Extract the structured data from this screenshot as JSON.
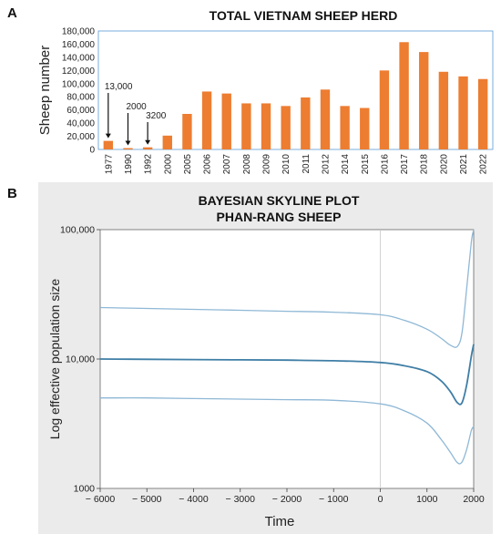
{
  "panels": {
    "a": "A",
    "b": "B"
  },
  "chart_data": [
    {
      "type": "bar",
      "title": "TOTAL VIETNAM SHEEP HERD",
      "ylabel": "Sheep number",
      "xlabel": "",
      "ylim": [
        0,
        180000
      ],
      "yticks": [
        "0",
        "20,000",
        "40,000",
        "60,000",
        "80,000",
        "100,000",
        "120,000",
        "140,000",
        "160,000",
        "180,000"
      ],
      "categories": [
        "1977",
        "1990",
        "1992",
        "2000",
        "2005",
        "2006",
        "2007",
        "2008",
        "2009",
        "2010",
        "2011",
        "2012",
        "2014",
        "2015",
        "2016",
        "2017",
        "2018",
        "2020",
        "2021",
        "2022"
      ],
      "values": [
        13000,
        2000,
        3200,
        21000,
        54000,
        88000,
        85000,
        70000,
        70000,
        66000,
        79000,
        91000,
        66000,
        63000,
        120000,
        163000,
        148000,
        118000,
        111000,
        107000
      ],
      "bar_color": "#ed7d31",
      "annotations": [
        {
          "text": "13,000",
          "category": "1977"
        },
        {
          "text": "2000",
          "category": "1990"
        },
        {
          "text": "3200",
          "category": "1992"
        }
      ]
    },
    {
      "type": "line",
      "title": "BAYESIAN SKYLINE PLOT",
      "subtitle": "PHAN-RANG SHEEP",
      "xlabel": "Time",
      "ylabel": "Log effective population size",
      "y_scale": "log",
      "xlim": [
        -6000,
        2000
      ],
      "ylim": [
        1000,
        100000
      ],
      "xticks": [
        "− 6000",
        "− 5000",
        "− 4000",
        "− 3000",
        "− 2000",
        "− 1000",
        "0",
        "1000",
        "2000"
      ],
      "yticks": [
        "1000",
        "10,000",
        "100,000"
      ],
      "grid": "vertical line at x = 0",
      "series": [
        {
          "x": [
            -6000,
            -5000,
            -4000,
            -3000,
            -2000,
            -1000,
            0,
            500,
            1000,
            1300,
            1500,
            1650,
            1750,
            1850,
            1950,
            2000
          ],
          "y": [
            25000,
            24600,
            24200,
            23800,
            23400,
            23000,
            22000,
            20000,
            17000,
            14500,
            12800,
            12500,
            16000,
            35000,
            80000,
            100000
          ]
        },
        {
          "x": [
            -6000,
            -5000,
            -4000,
            -3000,
            -2000,
            -1000,
            0,
            500,
            1000,
            1300,
            1500,
            1650,
            1750,
            1850,
            1950,
            2000
          ],
          "y": [
            10000,
            9950,
            9900,
            9850,
            9800,
            9700,
            9400,
            8900,
            8000,
            6800,
            5600,
            4600,
            4600,
            6300,
            10500,
            13000
          ]
        },
        {
          "x": [
            -6000,
            -5000,
            -4000,
            -3000,
            -2000,
            -1000,
            0,
            500,
            1000,
            1300,
            1500,
            1650,
            1750,
            1850,
            1950,
            2000
          ],
          "y": [
            5000,
            5000,
            4950,
            4900,
            4850,
            4800,
            4500,
            4000,
            3200,
            2400,
            1900,
            1580,
            1600,
            2000,
            2800,
            3000
          ]
        }
      ]
    }
  ]
}
